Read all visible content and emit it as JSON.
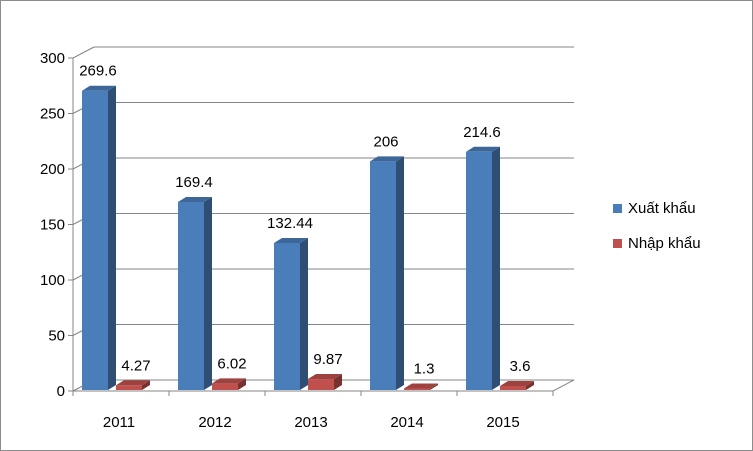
{
  "chart_data": {
    "type": "bar",
    "categories": [
      "2011",
      "2012",
      "2013",
      "2014",
      "2015"
    ],
    "series": [
      {
        "name": "Xuất khẩu",
        "values": [
          269.6,
          169.4,
          132.44,
          206,
          214.6
        ],
        "labels": [
          "269.6",
          "169.4",
          "132.44",
          "206",
          "214.6"
        ],
        "color": "#4a7ebb"
      },
      {
        "name": "Nhập khẩu",
        "values": [
          4.27,
          6.02,
          9.87,
          1.3,
          3.6
        ],
        "labels": [
          "4.27",
          "6.02",
          "9.87",
          "1.3",
          "3.6"
        ],
        "color": "#c0504d"
      }
    ],
    "ylim": [
      0,
      300
    ],
    "yticks": [
      "0",
      "50",
      "100",
      "150",
      "200",
      "250",
      "300"
    ],
    "grid": true,
    "legend": "right",
    "style": "3d-column"
  }
}
